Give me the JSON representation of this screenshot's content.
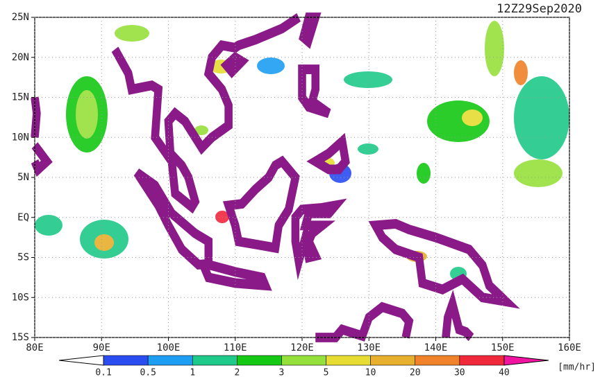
{
  "title": "12Z29Sep2020",
  "map": {
    "xlim": [
      80,
      160
    ],
    "ylim": [
      -15,
      25
    ],
    "xticks": [
      {
        "value": 80,
        "label": "80E"
      },
      {
        "value": 90,
        "label": "90E"
      },
      {
        "value": 100,
        "label": "100E"
      },
      {
        "value": 110,
        "label": "110E"
      },
      {
        "value": 120,
        "label": "120E"
      },
      {
        "value": 130,
        "label": "130E"
      },
      {
        "value": 140,
        "label": "140E"
      },
      {
        "value": 150,
        "label": "150E"
      },
      {
        "value": 160,
        "label": "160E"
      }
    ],
    "yticks": [
      {
        "value": -15,
        "label": "15S"
      },
      {
        "value": -10,
        "label": "10S"
      },
      {
        "value": -5,
        "label": "5S"
      },
      {
        "value": 0,
        "label": "EQ"
      },
      {
        "value": 5,
        "label": "5N"
      },
      {
        "value": 10,
        "label": "10N"
      },
      {
        "value": 15,
        "label": "15N"
      },
      {
        "value": 20,
        "label": "20N"
      },
      {
        "value": 25,
        "label": "25N"
      }
    ],
    "grid": true
  },
  "colorbar": {
    "levels": [
      0.1,
      0.5,
      1,
      2,
      3,
      5,
      10,
      20,
      30,
      40
    ],
    "colors": [
      "#ffffff",
      "#2b4cf0",
      "#1e9ef2",
      "#1fc98a",
      "#14c814",
      "#96e03c",
      "#e6dc32",
      "#e6af2d",
      "#f0822a",
      "#f0283c",
      "#f014a0"
    ],
    "units": "[mm/hr]"
  }
}
